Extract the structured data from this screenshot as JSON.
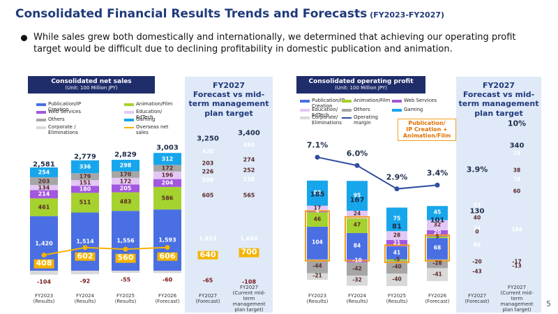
{
  "slide": {
    "title": "Consolidated Financial Results Trends and Forecasts",
    "title_note": "(FY2023-FY2027)",
    "bullet": "While sales grew both domestically and internationally, we determined that achieving our operating profit target would be difficult due to declining profitability in domestic publication and animation.",
    "page_number": 5
  },
  "chart_data": [
    {
      "type": "bar",
      "stacked": true,
      "title": "Consolidated net sales",
      "subtitle": "(Unit: 100 Million JPY)",
      "panel_title": "FY2027\nForecast vs mid-term management plan target",
      "categories": [
        "FY2023\n(Results)",
        "FY2024\n(Results)",
        "FY2025\n(Results)",
        "FY2026\n(Forecast)",
        "FY2027\n(Forecast)",
        "FY2027\n(Current mid-term management plan target)"
      ],
      "series": [
        {
          "name": "Publication/IP Creation",
          "color": "#4a6fe3",
          "values": [
            1420,
            1514,
            1556,
            1593,
            1653,
            1684
          ],
          "value_labels": [
            "1,420",
            "1,514",
            "1,556",
            "1,593",
            "1,653",
            "1,684"
          ]
        },
        {
          "name": "Animation/Film",
          "color": "#a5d22e",
          "values": [
            461,
            511,
            483,
            586,
            605,
            565
          ]
        },
        {
          "name": "Web Services",
          "color": "#a257de",
          "values": [
            214,
            180,
            205,
            204,
            208,
            238
          ]
        },
        {
          "name": "Education/ EdTech",
          "color": "#e3c8f6",
          "values": [
            134,
            151,
            172,
            196,
            226,
            252
          ]
        },
        {
          "name": "Others",
          "color": "#a6a6a6",
          "values": [
            203,
            179,
            170,
            172,
            203,
            274
          ]
        },
        {
          "name": "Gaming",
          "color": "#17a6ec",
          "values": [
            254,
            336,
            298,
            312,
            420,
            495
          ]
        },
        {
          "name": "Corporate / Eliminations",
          "color": "#d9d9d9",
          "values": [
            -104,
            -92,
            -55,
            -60,
            -65,
            -108
          ]
        },
        {
          "name": "Overseas net sales",
          "color": "#f5b400",
          "type": "line",
          "values": [
            408,
            602,
            560,
            606,
            640,
            700
          ]
        }
      ],
      "totals": {
        "values": [
          2581,
          2779,
          2829,
          3003,
          3250,
          3400
        ],
        "value_labels": [
          "2,581",
          "2,779",
          "2,829",
          "3,003",
          "3,250",
          "3,400"
        ]
      },
      "ylim": [
        -400,
        4500
      ]
    },
    {
      "type": "bar",
      "stacked": true,
      "title": "Consolidated operating profit",
      "subtitle": "(Unit: 100 Million JPY)",
      "panel_title": "FY2027\nForecast vs mid-term management plan target",
      "annotation": "Publication/\nIP Creation +\nAnimation/Film",
      "categories": [
        "FY2023\n(Results)",
        "FY2024\n(Results)",
        "FY2025\n(Results)",
        "FY2026\n(Forecast)",
        "FY2027\n(Forecast)",
        "FY2027\n(Current mid-term management plan target)"
      ],
      "series": [
        {
          "name": "Publication/IP Creation",
          "color": "#4a6fe3",
          "values": [
            104,
            84,
            41,
            68,
            86,
            184
          ]
        },
        {
          "name": "Animation/Film",
          "color": "#a5d22e",
          "values": [
            46,
            47,
            -5,
            5,
            0,
            60
          ]
        },
        {
          "name": "Web Services",
          "color": "#a257de",
          "values": [
            4,
            -10,
            21,
            20,
            24,
            18
          ]
        },
        {
          "name": "Education/ EdTech",
          "color": "#e3c8f6",
          "values": [
            17,
            24,
            28,
            32,
            40,
            38
          ]
        },
        {
          "name": "Others",
          "color": "#a6a6a6",
          "values": [
            -44,
            -42,
            -40,
            -28,
            -20,
            -17
          ]
        },
        {
          "name": "Gaming",
          "color": "#17a6ec",
          "values": [
            80,
            95,
            75,
            45,
            43,
            70
          ]
        },
        {
          "name": "Corporate/ Eliminations",
          "color": "#d9d9d9",
          "values": [
            -21,
            -32,
            -40,
            -41,
            -43,
            -13
          ]
        },
        {
          "name": "Operating margin",
          "color": "#2d4ea1",
          "type": "line",
          "axis": "y2",
          "values": [
            7.1,
            6.0,
            2.9,
            3.4,
            3.9,
            10
          ],
          "value_labels": [
            "7.1%",
            "6.0%",
            "2.9%",
            "3.4%",
            "3.9%",
            "10%"
          ]
        }
      ],
      "totals": {
        "values": [
          185,
          167,
          81,
          101,
          130,
          340
        ]
      },
      "ylim": [
        -85,
        515
      ],
      "y2lim": [
        -10,
        15
      ]
    }
  ]
}
